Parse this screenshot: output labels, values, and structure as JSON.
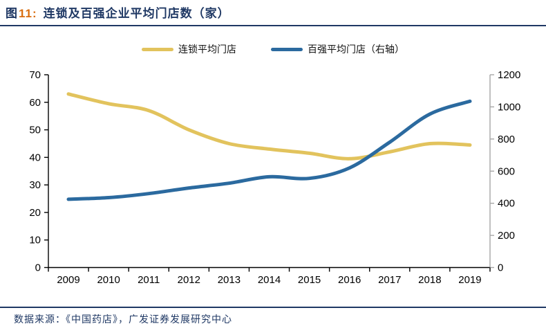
{
  "title": {
    "prefix": "图",
    "number": "11:",
    "text": "连锁及百强企业平均门店数（家）"
  },
  "legend": [
    {
      "label": "连锁平均门店",
      "color": "#E2C35D"
    },
    {
      "label": "百强平均门店（右轴）",
      "color": "#2B6A9F"
    }
  ],
  "source": {
    "text": "数据来源：《中国药店》，广发证券发展研究中心"
  },
  "colors": {
    "navy": "#1F3864",
    "title_number_orange": "#D96D0E",
    "axis_black": "#000000",
    "axis_gray": "#A6A6A6",
    "chain_yellow": "#E2C35D",
    "top100_blue": "#2B6A9F"
  },
  "chart_data": {
    "type": "line",
    "title": "连锁及百强企业平均门店数（家）",
    "categories": [
      "2009",
      "2010",
      "2011",
      "2012",
      "2013",
      "2014",
      "2015",
      "2016",
      "2017",
      "2018",
      "2019"
    ],
    "series": [
      {
        "name": "连锁平均门店",
        "axis": "left",
        "color": "#E2C35D",
        "values": [
          63,
          59.5,
          57,
          50,
          45,
          43,
          41.5,
          39.5,
          42,
          45,
          44.5
        ]
      },
      {
        "name": "百强平均门店（右轴）",
        "axis": "right",
        "color": "#2B6A9F",
        "values": [
          425,
          435,
          460,
          495,
          525,
          565,
          555,
          620,
          780,
          955,
          1035
        ]
      }
    ],
    "left_axis": {
      "min": 0,
      "max": 70,
      "step": 10,
      "ticks": [
        "0",
        "10",
        "20",
        "30",
        "40",
        "50",
        "60",
        "70"
      ]
    },
    "right_axis": {
      "min": 0,
      "max": 1200,
      "step": 200,
      "ticks": [
        "0",
        "200",
        "400",
        "600",
        "800",
        "1000",
        "1200"
      ]
    },
    "grid": false,
    "legend_position": "top",
    "smooth": true
  }
}
